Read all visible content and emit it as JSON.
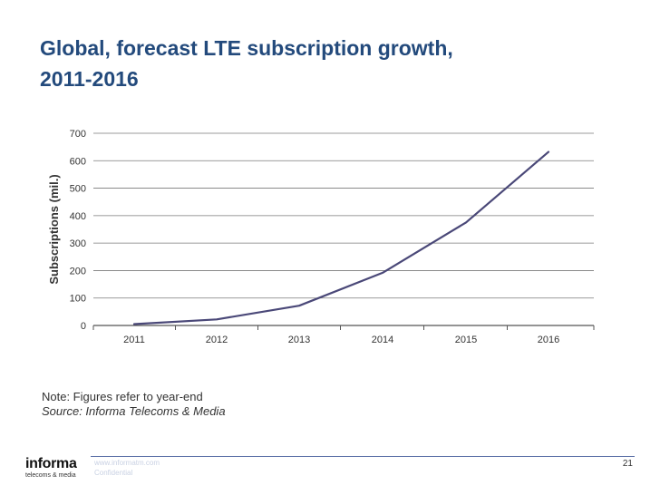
{
  "slide": {
    "title_line1": "Global, forecast LTE subscription growth,",
    "title_line2": "2011-2016",
    "note": "Note: Figures refer to year-end",
    "source": "Source: Informa Telecoms & Media",
    "footer_url": "www.informatm.com",
    "footer_conf": "Confidential",
    "page_number": "21",
    "logo_brand": "informa",
    "logo_sub": "telecoms & media"
  },
  "colors": {
    "title": "#234a7c",
    "line": "#4a4878",
    "grid": "#7a7a7a"
  },
  "chart_data": {
    "type": "line",
    "title": "",
    "xlabel": "",
    "ylabel": "Subscriptions (mil.)",
    "categories": [
      "2011",
      "2012",
      "2013",
      "2014",
      "2015",
      "2016"
    ],
    "series": [
      {
        "name": "LTE subscriptions",
        "values": [
          5,
          22,
          72,
          192,
          375,
          632
        ]
      }
    ],
    "ylim": [
      0,
      700
    ],
    "yticks": [
      0,
      100,
      200,
      300,
      400,
      500,
      600,
      700
    ],
    "grid": true
  }
}
